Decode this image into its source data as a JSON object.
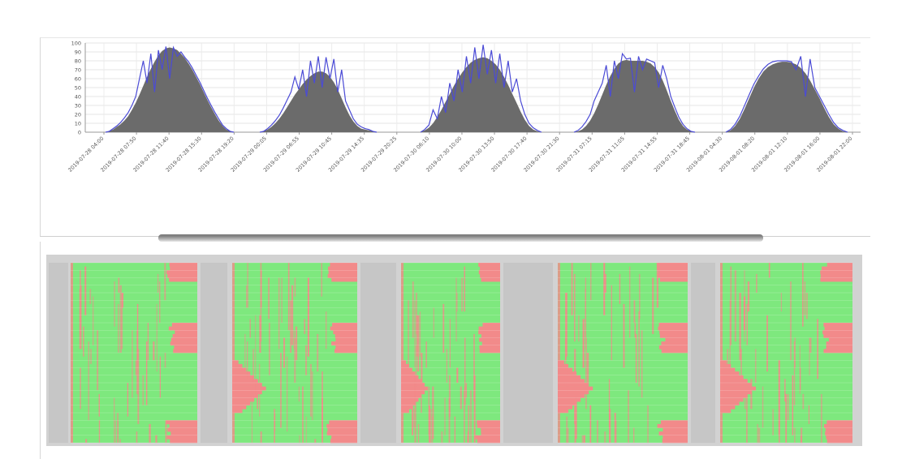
{
  "chart_data": [
    {
      "type": "area",
      "ylim": [
        0,
        100
      ],
      "yticks": [
        0,
        10,
        20,
        30,
        40,
        50,
        60,
        70,
        80,
        90,
        100
      ],
      "grid": true,
      "x_tick_labels": [
        "2019-07-28 04:00",
        "2019-07-28 07:50",
        "2019-07-28 11:40",
        "2019-07-28 15:30",
        "2019-07-28 19:20",
        "2019-07-29 00:05",
        "2019-07-29 06:55",
        "2019-07-29 10:45",
        "2019-07-29 14:35",
        "2019-07-29 20:25",
        "2019-07-30 06:10",
        "2019-07-30 10:00",
        "2019-07-30 13:50",
        "2019-07-30 17:40",
        "2019-07-30 21:30",
        "2019-07-31 07:15",
        "2019-07-31 11:05",
        "2019-07-31 14:55",
        "2019-07-31 18:45",
        "2019-08-01 04:30",
        "2019-08-01 08:20",
        "2019-08-01 12:10",
        "2019-08-01 16:00",
        "2019-08-01 22:00"
      ],
      "series": [
        {
          "color": "#6b6b6b",
          "style": "filled-area"
        },
        {
          "color": "#4b4bd6",
          "style": "line"
        }
      ],
      "days": [
        {
          "date": "2019-07-28",
          "y": [
            0,
            1,
            3,
            6,
            9,
            13,
            18,
            25,
            33,
            42,
            52,
            62,
            71,
            79,
            86,
            91,
            94,
            95,
            94,
            92,
            88,
            83,
            77,
            70,
            62,
            54,
            45,
            36,
            28,
            20,
            13,
            7,
            3,
            1,
            0
          ],
          "y2": [
            0,
            1,
            4,
            7,
            11,
            16,
            22,
            30,
            40,
            60,
            80,
            55,
            88,
            45,
            92,
            70,
            96,
            60,
            95,
            85,
            90,
            84,
            79,
            72,
            64,
            56,
            47,
            38,
            30,
            22,
            15,
            8,
            4,
            1,
            0
          ]
        },
        {
          "date": "2019-07-29",
          "y": [
            0,
            1,
            3,
            6,
            10,
            15,
            21,
            28,
            35,
            42,
            48,
            54,
            59,
            63,
            66,
            68,
            68,
            66,
            62,
            56,
            48,
            38,
            28,
            19,
            12,
            7,
            4,
            3,
            2,
            1,
            0
          ],
          "y2": [
            0,
            1,
            4,
            8,
            13,
            19,
            27,
            36,
            45,
            62,
            48,
            70,
            40,
            80,
            55,
            85,
            50,
            84,
            60,
            82,
            45,
            70,
            35,
            25,
            15,
            9,
            6,
            4,
            3,
            1,
            0
          ]
        },
        {
          "date": "2019-07-30",
          "y": [
            0,
            2,
            5,
            10,
            17,
            25,
            34,
            43,
            52,
            60,
            67,
            73,
            78,
            81,
            83,
            84,
            83,
            80,
            76,
            70,
            62,
            53,
            43,
            33,
            23,
            14,
            7,
            3,
            1,
            0
          ],
          "y2": [
            0,
            3,
            8,
            25,
            15,
            40,
            22,
            55,
            35,
            70,
            45,
            85,
            55,
            95,
            60,
            98,
            65,
            92,
            55,
            88,
            50,
            80,
            45,
            60,
            35,
            20,
            10,
            5,
            2,
            0
          ]
        },
        {
          "date": "2019-07-31",
          "y": [
            0,
            1,
            3,
            7,
            13,
            21,
            31,
            42,
            53,
            63,
            71,
            77,
            80,
            81,
            80,
            80,
            80,
            80,
            79,
            77,
            73,
            67,
            58,
            47,
            35,
            24,
            14,
            7,
            3,
            1,
            0
          ],
          "y2": [
            0,
            2,
            6,
            12,
            20,
            35,
            45,
            55,
            75,
            40,
            80,
            60,
            88,
            82,
            83,
            45,
            85,
            70,
            82,
            80,
            78,
            50,
            75,
            60,
            40,
            28,
            17,
            9,
            4,
            1,
            0
          ]
        },
        {
          "date": "2019-08-01",
          "y": [
            0,
            2,
            7,
            15,
            26,
            38,
            50,
            60,
            68,
            73,
            76,
            78,
            79,
            79,
            78,
            76,
            72,
            66,
            58,
            48,
            38,
            27,
            17,
            9,
            4,
            1,
            0
          ],
          "y2": [
            0,
            3,
            9,
            18,
            30,
            42,
            54,
            63,
            71,
            76,
            79,
            80,
            80,
            80,
            79,
            70,
            85,
            40,
            82,
            50,
            40,
            30,
            20,
            11,
            5,
            2,
            0
          ]
        }
      ]
    },
    {
      "type": "heatmap",
      "groups": 5,
      "rows": 48,
      "colors": {
        "ok": "#7ee87e",
        "alert": "#f28a8a",
        "inactive": "#c6c6c6"
      }
    }
  ]
}
